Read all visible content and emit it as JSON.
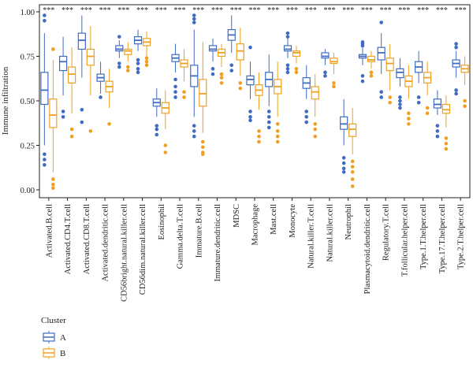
{
  "chart_data": {
    "type": "boxplot",
    "ylabel": "Immune infiltration",
    "ylim": [
      -0.02,
      1.02
    ],
    "yticks": [
      "0.00",
      "0.25",
      "0.50",
      "0.75",
      "1.00"
    ],
    "significance_label": "***",
    "legend": {
      "title": "Cluster",
      "position": "bottom-left"
    },
    "colors": {
      "A": "#3f6cc2",
      "B": "#f0a020"
    },
    "categories": [
      "Activated.B.cell",
      "Activated.CD4.T.cell",
      "Activated.CD8.T.cell",
      "Activated.dendritic.cell",
      "CD56bright.natural.killer.cell",
      "CD56dim.natural.killer.cell",
      "Eosinophil",
      "Gamma.delta.T.cell",
      "Immature.B.cell",
      "Immature.dendritic.cell",
      "MDSC",
      "Macrophage",
      "Mast.cell",
      "Monocyte",
      "Natural.killer.T.cell",
      "Natural.killer.cell",
      "Neutrophil",
      "Plasmacytoid.dendritic.cell",
      "Regulatory.T.cell",
      "T.follicular.helper.cell",
      "Type.1.T.helper.cell",
      "Type.17.T.helper.cell",
      "Type.2.T.helper.cell"
    ],
    "series": [
      {
        "name": "A",
        "boxes": [
          [
            0.25,
            0.48,
            0.56,
            0.66,
            0.88
          ],
          [
            0.53,
            0.67,
            0.72,
            0.75,
            0.86
          ],
          [
            0.63,
            0.79,
            0.84,
            0.88,
            0.98
          ],
          [
            0.54,
            0.61,
            0.63,
            0.65,
            0.72
          ],
          [
            0.74,
            0.78,
            0.79,
            0.81,
            0.84
          ],
          [
            0.78,
            0.82,
            0.84,
            0.86,
            0.9
          ],
          [
            0.41,
            0.47,
            0.49,
            0.51,
            0.57
          ],
          [
            0.66,
            0.72,
            0.74,
            0.76,
            0.82
          ],
          [
            0.41,
            0.58,
            0.64,
            0.7,
            0.9
          ],
          [
            0.72,
            0.78,
            0.79,
            0.81,
            0.85
          ],
          [
            0.77,
            0.84,
            0.87,
            0.9,
            0.98
          ],
          [
            0.51,
            0.59,
            0.62,
            0.64,
            0.72
          ],
          [
            0.47,
            0.58,
            0.62,
            0.66,
            0.76
          ],
          [
            0.74,
            0.78,
            0.79,
            0.81,
            0.85
          ],
          [
            0.51,
            0.57,
            0.6,
            0.63,
            0.7
          ],
          [
            0.7,
            0.74,
            0.75,
            0.77,
            0.79
          ],
          [
            0.25,
            0.34,
            0.37,
            0.41,
            0.51
          ],
          [
            0.7,
            0.74,
            0.75,
            0.76,
            0.8
          ],
          [
            0.65,
            0.73,
            0.77,
            0.8,
            0.88
          ],
          [
            0.58,
            0.63,
            0.66,
            0.68,
            0.74
          ],
          [
            0.6,
            0.66,
            0.69,
            0.72,
            0.78
          ],
          [
            0.42,
            0.46,
            0.48,
            0.51,
            0.56
          ],
          [
            0.63,
            0.69,
            0.71,
            0.73,
            0.78
          ]
        ],
        "outliers": [
          [
            0.98,
            0.95,
            0.2,
            0.17,
            0.14
          ],
          [
            0.44,
            0.41
          ],
          [
            0.45,
            0.38
          ],
          [
            0.52
          ],
          [
            0.71,
            0.69,
            0.86
          ],
          [
            0.73,
            0.71,
            0.68,
            0.66
          ],
          [
            0.36,
            0.34,
            0.31
          ],
          [
            0.62,
            0.58,
            0.55,
            0.52
          ],
          [
            0.98,
            0.96,
            0.94,
            0.36,
            0.33,
            0.3
          ],
          [
            0.68,
            0.65
          ],
          [
            0.7,
            0.67
          ],
          [
            0.8,
            0.44,
            0.41,
            0.39
          ],
          [
            0.44,
            0.41,
            0.38,
            0.35
          ],
          [
            0.88,
            0.86,
            0.7,
            0.68,
            0.66
          ],
          [
            0.44,
            0.41,
            0.38
          ],
          [
            0.66,
            0.64
          ],
          [
            0.18,
            0.15,
            0.12,
            0.1
          ],
          [
            0.83,
            0.82,
            0.81,
            0.64,
            0.61
          ],
          [
            0.94,
            0.55,
            0.52
          ],
          [
            0.52,
            0.5,
            0.48,
            0.46
          ],
          [
            0.52,
            0.49
          ],
          [
            0.36,
            0.33,
            0.3
          ],
          [
            0.82,
            0.8,
            0.56,
            0.54
          ]
        ]
      },
      {
        "name": "B",
        "boxes": [
          [
            0.1,
            0.35,
            0.42,
            0.51,
            0.73
          ],
          [
            0.43,
            0.6,
            0.65,
            0.69,
            0.8
          ],
          [
            0.53,
            0.7,
            0.75,
            0.79,
            0.92
          ],
          [
            0.46,
            0.55,
            0.58,
            0.61,
            0.68
          ],
          [
            0.72,
            0.76,
            0.78,
            0.79,
            0.83
          ],
          [
            0.75,
            0.81,
            0.83,
            0.85,
            0.89
          ],
          [
            0.34,
            0.43,
            0.46,
            0.49,
            0.56
          ],
          [
            0.61,
            0.69,
            0.71,
            0.73,
            0.79
          ],
          [
            0.32,
            0.47,
            0.54,
            0.62,
            0.83
          ],
          [
            0.69,
            0.75,
            0.77,
            0.79,
            0.82
          ],
          [
            0.64,
            0.73,
            0.78,
            0.82,
            0.91
          ],
          [
            0.45,
            0.53,
            0.56,
            0.59,
            0.66
          ],
          [
            0.41,
            0.54,
            0.58,
            0.62,
            0.72
          ],
          [
            0.71,
            0.75,
            0.77,
            0.78,
            0.81
          ],
          [
            0.41,
            0.51,
            0.55,
            0.58,
            0.65
          ],
          [
            0.65,
            0.71,
            0.72,
            0.74,
            0.77
          ],
          [
            0.2,
            0.3,
            0.34,
            0.37,
            0.46
          ],
          [
            0.68,
            0.72,
            0.73,
            0.75,
            0.78
          ],
          [
            0.56,
            0.67,
            0.71,
            0.74,
            0.82
          ],
          [
            0.51,
            0.58,
            0.61,
            0.64,
            0.7
          ],
          [
            0.53,
            0.6,
            0.63,
            0.66,
            0.72
          ],
          [
            0.35,
            0.43,
            0.45,
            0.48,
            0.53
          ],
          [
            0.59,
            0.66,
            0.68,
            0.7,
            0.75
          ]
        ],
        "outliers": [
          [
            0.79,
            0.06,
            0.03,
            0.01
          ],
          [
            0.34,
            0.3
          ],
          [
            0.33
          ],
          [
            0.37
          ],
          [
            0.69,
            0.67
          ],
          [
            0.74,
            0.72,
            0.7
          ],
          [
            0.25,
            0.21
          ],
          [
            0.55,
            0.52
          ],
          [
            0.27,
            0.24,
            0.21,
            0.2
          ],
          [
            0.65,
            0.63,
            0.6
          ],
          [
            0.6,
            0.57
          ],
          [
            0.33,
            0.3,
            0.27
          ],
          [
            0.37,
            0.33,
            0.3,
            0.27
          ],
          [
            0.68,
            0.66
          ],
          [
            0.37,
            0.34,
            0.3
          ],
          [
            0.6,
            0.58
          ],
          [
            0.16,
            0.13,
            0.1,
            0.06,
            0.02
          ],
          [
            0.66,
            0.64
          ],
          [
            0.52,
            0.49
          ],
          [
            0.43,
            0.4,
            0.37
          ],
          [
            0.46,
            0.43
          ],
          [
            0.29,
            0.26,
            0.23
          ],
          [
            0.5,
            0.47
          ]
        ]
      }
    ]
  }
}
